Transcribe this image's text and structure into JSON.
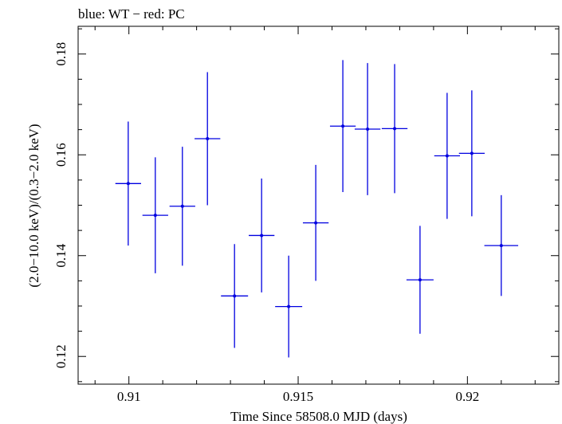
{
  "chart_data": {
    "type": "scatter",
    "title": "blue: WT − red: PC",
    "xlabel": "Time Since 58508.0 MJD (days)",
    "ylabel": "(2.0−10.0 keV)/(0.3−2.0 keV)",
    "xlim": [
      0.9085,
      0.9227
    ],
    "ylim": [
      0.1145,
      0.1855
    ],
    "xticks": [
      0.91,
      0.915,
      0.92
    ],
    "xtick_labels": [
      "0.91",
      "0.915",
      "0.92"
    ],
    "yticks": [
      0.12,
      0.14,
      0.16,
      0.18
    ],
    "ytick_labels": [
      "0.12",
      "0.14",
      "0.16",
      "0.18"
    ],
    "grid": false,
    "series": [
      {
        "color": "#0000e0",
        "points": [
          {
            "x": 0.90998,
            "xerr": 0.00038,
            "y": 0.1543,
            "yerr": 0.0123
          },
          {
            "x": 0.91078,
            "xerr": 0.00038,
            "y": 0.148,
            "yerr": 0.0115
          },
          {
            "x": 0.91158,
            "xerr": 0.00038,
            "y": 0.1498,
            "yerr": 0.0118
          },
          {
            "x": 0.91232,
            "xerr": 0.00038,
            "y": 0.1632,
            "yerr": 0.0132
          },
          {
            "x": 0.91312,
            "xerr": 0.0004,
            "y": 0.132,
            "yerr": 0.0103
          },
          {
            "x": 0.91392,
            "xerr": 0.00038,
            "y": 0.144,
            "yerr": 0.0113
          },
          {
            "x": 0.91472,
            "xerr": 0.0004,
            "y": 0.1299,
            "yerr": 0.0101
          },
          {
            "x": 0.91552,
            "xerr": 0.00038,
            "y": 0.1465,
            "yerr": 0.0115
          },
          {
            "x": 0.91632,
            "xerr": 0.00038,
            "y": 0.1657,
            "yerr": 0.0131
          },
          {
            "x": 0.91705,
            "xerr": 0.00038,
            "y": 0.1651,
            "yerr": 0.0131
          },
          {
            "x": 0.91785,
            "xerr": 0.00038,
            "y": 0.1652,
            "yerr": 0.0128
          },
          {
            "x": 0.9186,
            "xerr": 0.0004,
            "y": 0.1352,
            "yerr": 0.0107
          },
          {
            "x": 0.9194,
            "xerr": 0.00038,
            "y": 0.1598,
            "yerr": 0.0125
          },
          {
            "x": 0.92013,
            "xerr": 0.00038,
            "y": 0.1603,
            "yerr": 0.0125
          },
          {
            "x": 0.921,
            "xerr": 0.0005,
            "y": 0.142,
            "yerr": 0.01
          }
        ]
      }
    ]
  }
}
